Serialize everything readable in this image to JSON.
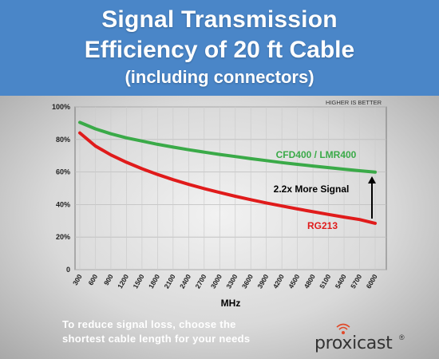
{
  "header": {
    "title_line1": "Signal Transmission",
    "title_line2": "Efficiency of 20 ft Cable",
    "subtitle": "(including connectors)",
    "bg_color": "#4a86c8"
  },
  "chart_data": {
    "type": "line",
    "xlabel": "MHz",
    "ylabel": "",
    "corner_note": "HIGHER IS BETTER",
    "x": [
      300,
      600,
      900,
      1200,
      1500,
      1800,
      2100,
      2400,
      2700,
      3000,
      3300,
      3600,
      3900,
      4200,
      4500,
      4800,
      5100,
      5400,
      5700,
      6000
    ],
    "ylim": [
      0,
      100
    ],
    "yticks": [
      0,
      20,
      40,
      60,
      80,
      100
    ],
    "ytick_labels": [
      "0",
      "20%",
      "40%",
      "60%",
      "80%",
      "100%"
    ],
    "grid": true,
    "series": [
      {
        "name": "CFD400 / LMR400",
        "color": "#3aaa48",
        "values": [
          90.5,
          86.5,
          83.5,
          81,
          79,
          77,
          75.3,
          73.7,
          72.2,
          70.8,
          69.5,
          68.2,
          67,
          65.8,
          64.7,
          63.7,
          62.7,
          61.7,
          60.8,
          59.9
        ]
      },
      {
        "name": "RG213",
        "color": "#e01b1b",
        "values": [
          84,
          76,
          70.5,
          66,
          62,
          58.5,
          55.3,
          52.4,
          49.8,
          47.4,
          45.1,
          43,
          41,
          39.1,
          37.3,
          35.6,
          33.9,
          32.3,
          30.8,
          28.5
        ]
      }
    ],
    "annotations": [
      {
        "text": "2.2x More Signal",
        "color": "#000000"
      }
    ]
  },
  "footer": {
    "note_line1": "To reduce signal loss, choose the",
    "note_line2": "shortest cable length for your needs"
  },
  "logo": {
    "wordmark": "proxicast",
    "registered": "®",
    "icon": "wifi-signal-icon",
    "icon_color": "#e04a2a"
  }
}
